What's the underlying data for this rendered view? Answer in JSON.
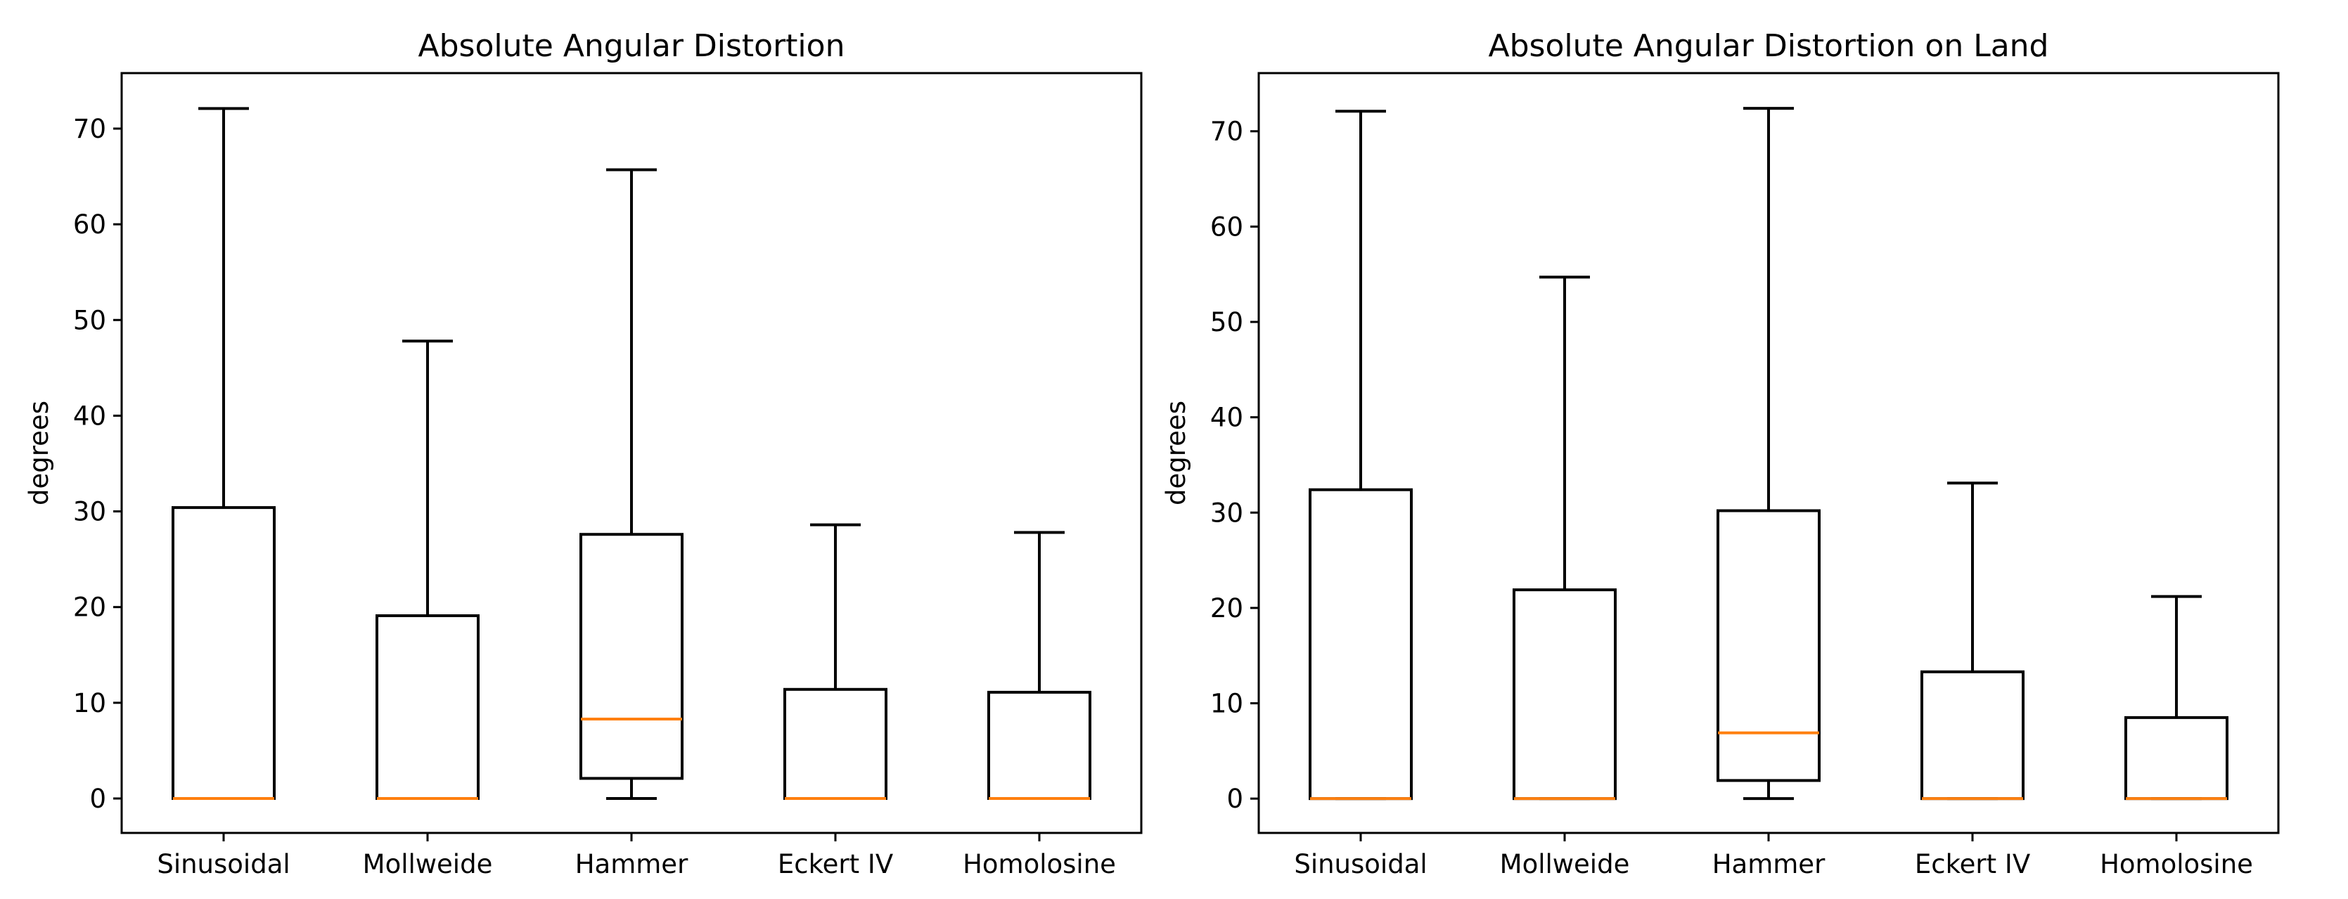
{
  "colors": {
    "box": "#000000",
    "median": "#ff7f0e",
    "background": "#ffffff"
  },
  "chart_data": [
    {
      "type": "boxplot",
      "title": "Absolute Angular Distortion",
      "xlabel": "",
      "ylabel": "degrees",
      "ylim": [
        -3.6,
        75.8
      ],
      "yticks": [
        0,
        10,
        20,
        30,
        40,
        50,
        60,
        70
      ],
      "categories": [
        "Sinusoidal",
        "Mollweide",
        "Hammer",
        "Eckert IV",
        "Homolosine"
      ],
      "boxes": [
        {
          "whislo": 0,
          "q1": 0,
          "med": 0,
          "q3": 30.4,
          "whishi": 72.1
        },
        {
          "whislo": 0,
          "q1": 0,
          "med": 0,
          "q3": 19.1,
          "whishi": 47.8
        },
        {
          "whislo": 0,
          "q1": 2.1,
          "med": 8.3,
          "q3": 27.6,
          "whishi": 65.7
        },
        {
          "whislo": 0,
          "q1": 0,
          "med": 0,
          "q3": 11.4,
          "whishi": 28.6
        },
        {
          "whislo": 0,
          "q1": 0,
          "med": 0,
          "q3": 11.1,
          "whishi": 27.8
        }
      ]
    },
    {
      "type": "boxplot",
      "title": "Absolute Angular Distortion on Land",
      "xlabel": "",
      "ylabel": "degrees",
      "ylim": [
        -3.6,
        76.1
      ],
      "yticks": [
        0,
        10,
        20,
        30,
        40,
        50,
        60,
        70
      ],
      "categories": [
        "Sinusoidal",
        "Mollweide",
        "Hammer",
        "Eckert IV",
        "Homolosine"
      ],
      "boxes": [
        {
          "whislo": 0,
          "q1": 0,
          "med": 0,
          "q3": 32.4,
          "whishi": 72.1
        },
        {
          "whislo": 0,
          "q1": 0,
          "med": 0,
          "q3": 21.9,
          "whishi": 54.7
        },
        {
          "whislo": 0,
          "q1": 1.9,
          "med": 6.9,
          "q3": 30.2,
          "whishi": 72.4
        },
        {
          "whislo": 0,
          "q1": 0,
          "med": 0,
          "q3": 13.3,
          "whishi": 33.1
        },
        {
          "whislo": 0,
          "q1": 0,
          "med": 0,
          "q3": 8.5,
          "whishi": 21.2
        }
      ]
    }
  ]
}
